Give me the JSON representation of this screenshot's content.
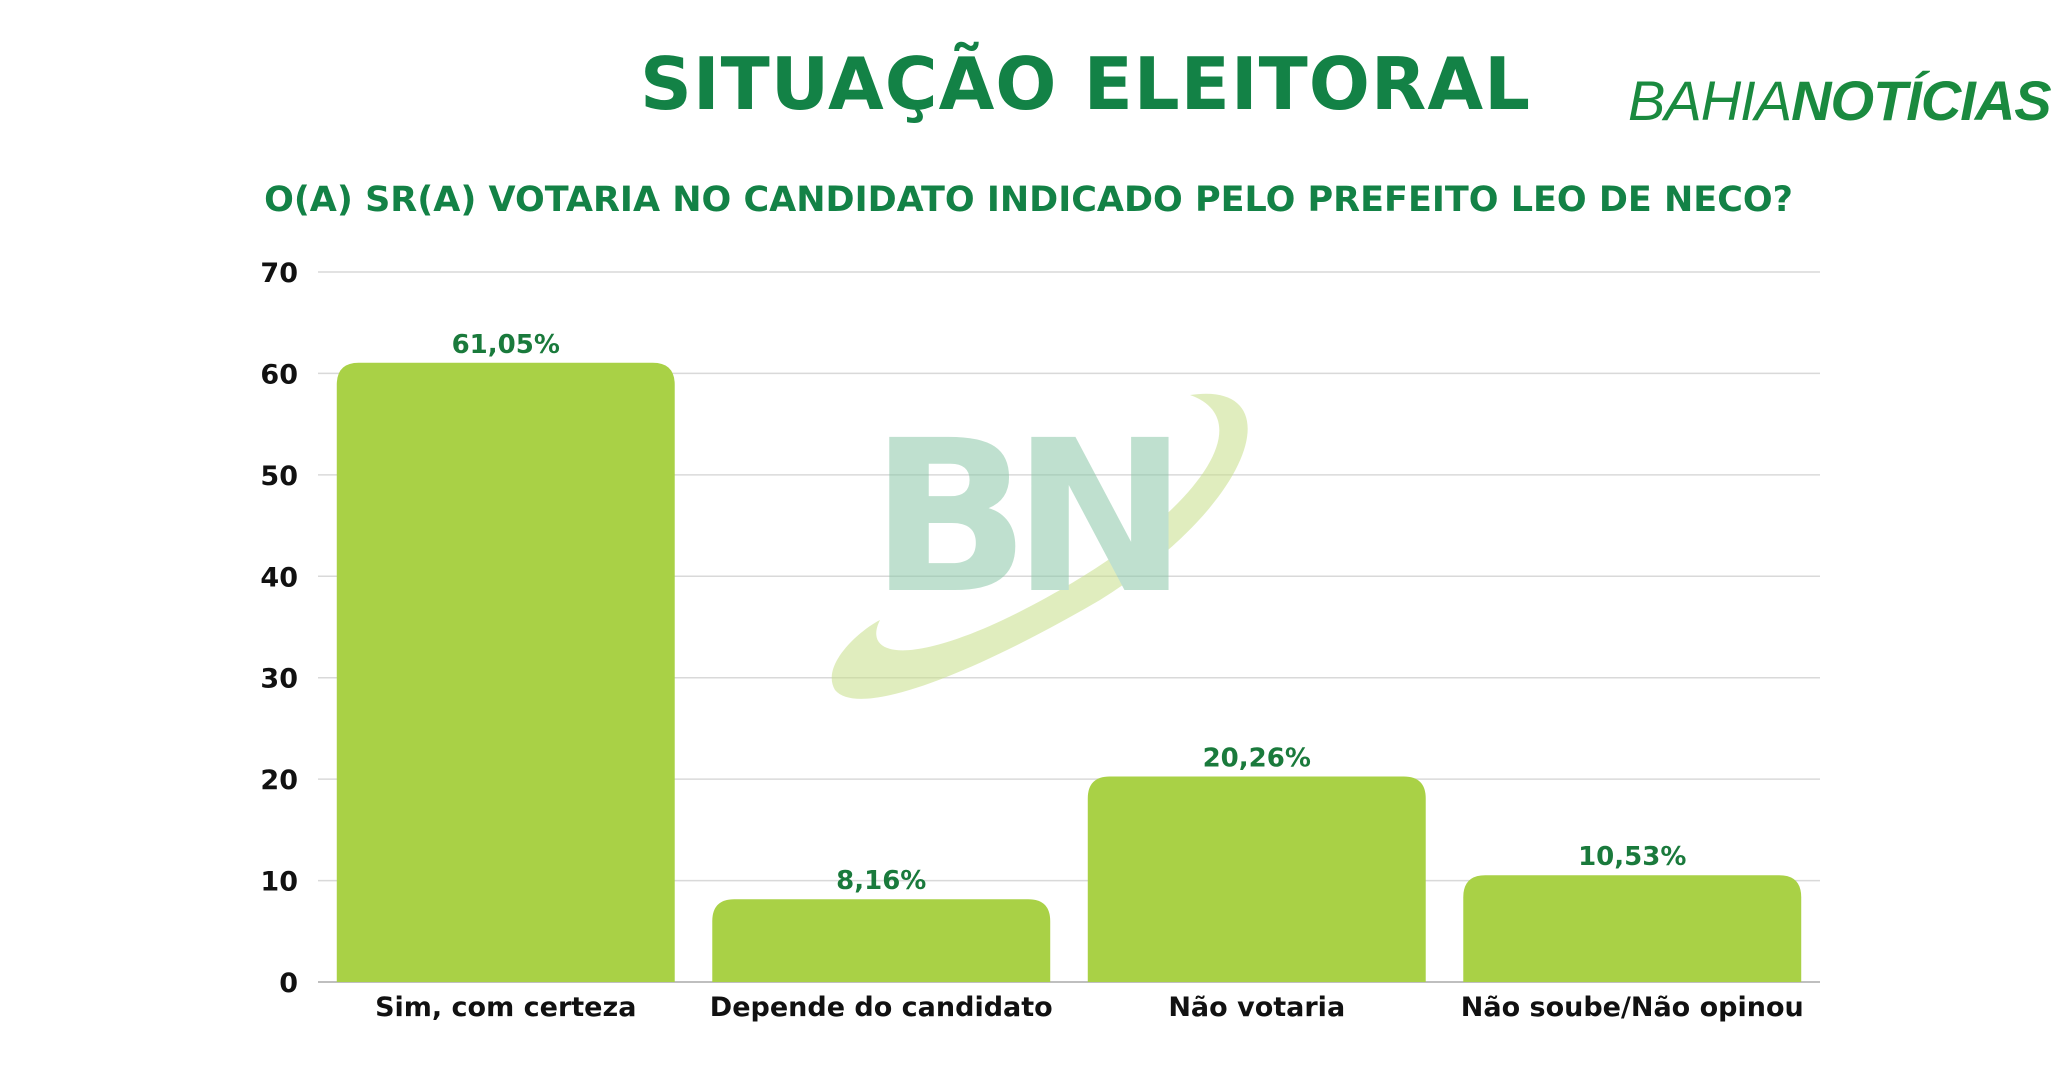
{
  "header": {
    "title": "SITUAÇÃO ELEITORAL",
    "logo_part1": "BAHIA",
    "logo_part2": "NOTÍCIAS",
    "subtitle": "O(A) SR(A) VOTARIA NO CANDIDATO INDICADO PELO PREFEITO LEO DE NECO?"
  },
  "watermark": {
    "text": "BN"
  },
  "colors": {
    "bar": "#a9d146",
    "label": "#1a7a3c",
    "title": "#138246",
    "grid": "#d9d9d9",
    "axis_text": "#111111"
  },
  "chart_data": {
    "type": "bar",
    "categories": [
      "Sim, com certeza",
      "Depende do candidato",
      "Não votaria",
      "Não soube/Não opinou"
    ],
    "values": [
      61.05,
      8.16,
      20.26,
      10.53
    ],
    "value_labels": [
      "61,05%",
      "8,16%",
      "20,26%",
      "10,53%"
    ],
    "title": "SITUAÇÃO ELEITORAL",
    "subtitle": "O(A) SR(A) VOTARIA NO CANDIDATO INDICADO PELO PREFEITO LEO DE NECO?",
    "xlabel": "",
    "ylabel": "",
    "ylim": [
      0,
      70
    ],
    "yticks": [
      0,
      10,
      20,
      30,
      40,
      50,
      60,
      70
    ],
    "grid": true,
    "legend": "none"
  }
}
